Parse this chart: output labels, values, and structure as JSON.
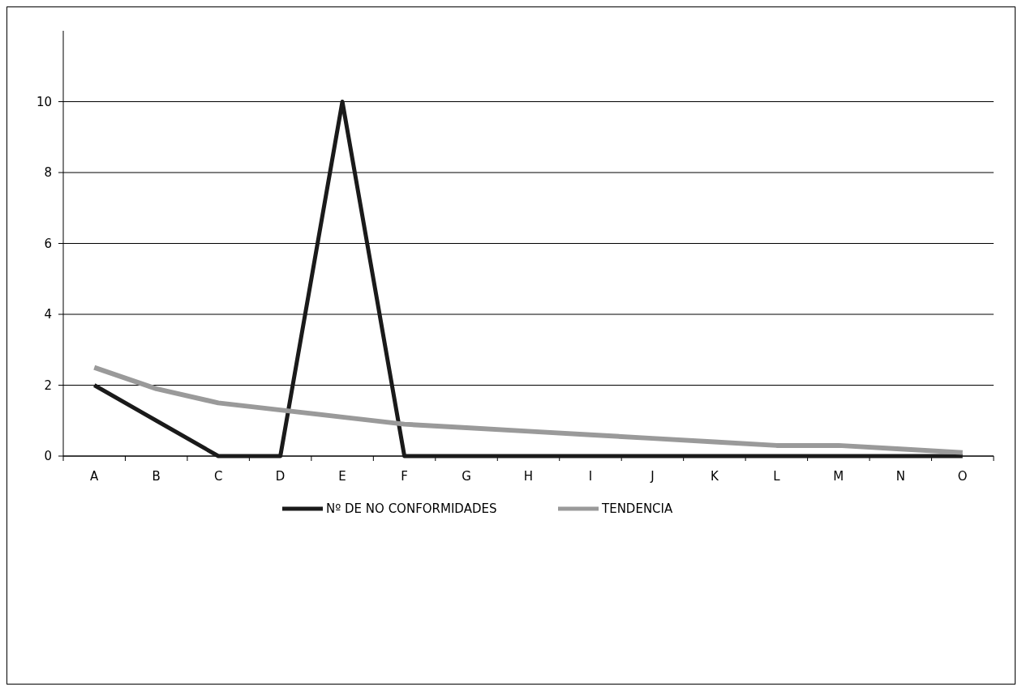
{
  "chart_data": {
    "type": "line",
    "categories": [
      "A",
      "B",
      "C",
      "D",
      "E",
      "F",
      "G",
      "H",
      "I",
      "J",
      "K",
      "L",
      "M",
      "N",
      "O"
    ],
    "series": [
      {
        "name": "Nº DE NO CONFORMIDADES",
        "color": "#1a1a1a",
        "values": [
          2,
          1,
          0,
          0,
          10,
          0,
          0,
          0,
          0,
          0,
          0,
          0,
          0,
          0,
          0
        ]
      },
      {
        "name": "TENDENCIA",
        "color": "#9a9a9a",
        "values": [
          2.5,
          1.9,
          1.5,
          1.3,
          1.1,
          0.9,
          0.8,
          0.7,
          0.6,
          0.5,
          0.4,
          0.3,
          0.3,
          0.2,
          0.1
        ]
      }
    ],
    "ylim": [
      0,
      12
    ],
    "yticks": [
      0,
      2,
      4,
      6,
      8,
      10
    ],
    "grid": "y",
    "legend": "bottom",
    "marker": "none",
    "line_style": "solid"
  }
}
